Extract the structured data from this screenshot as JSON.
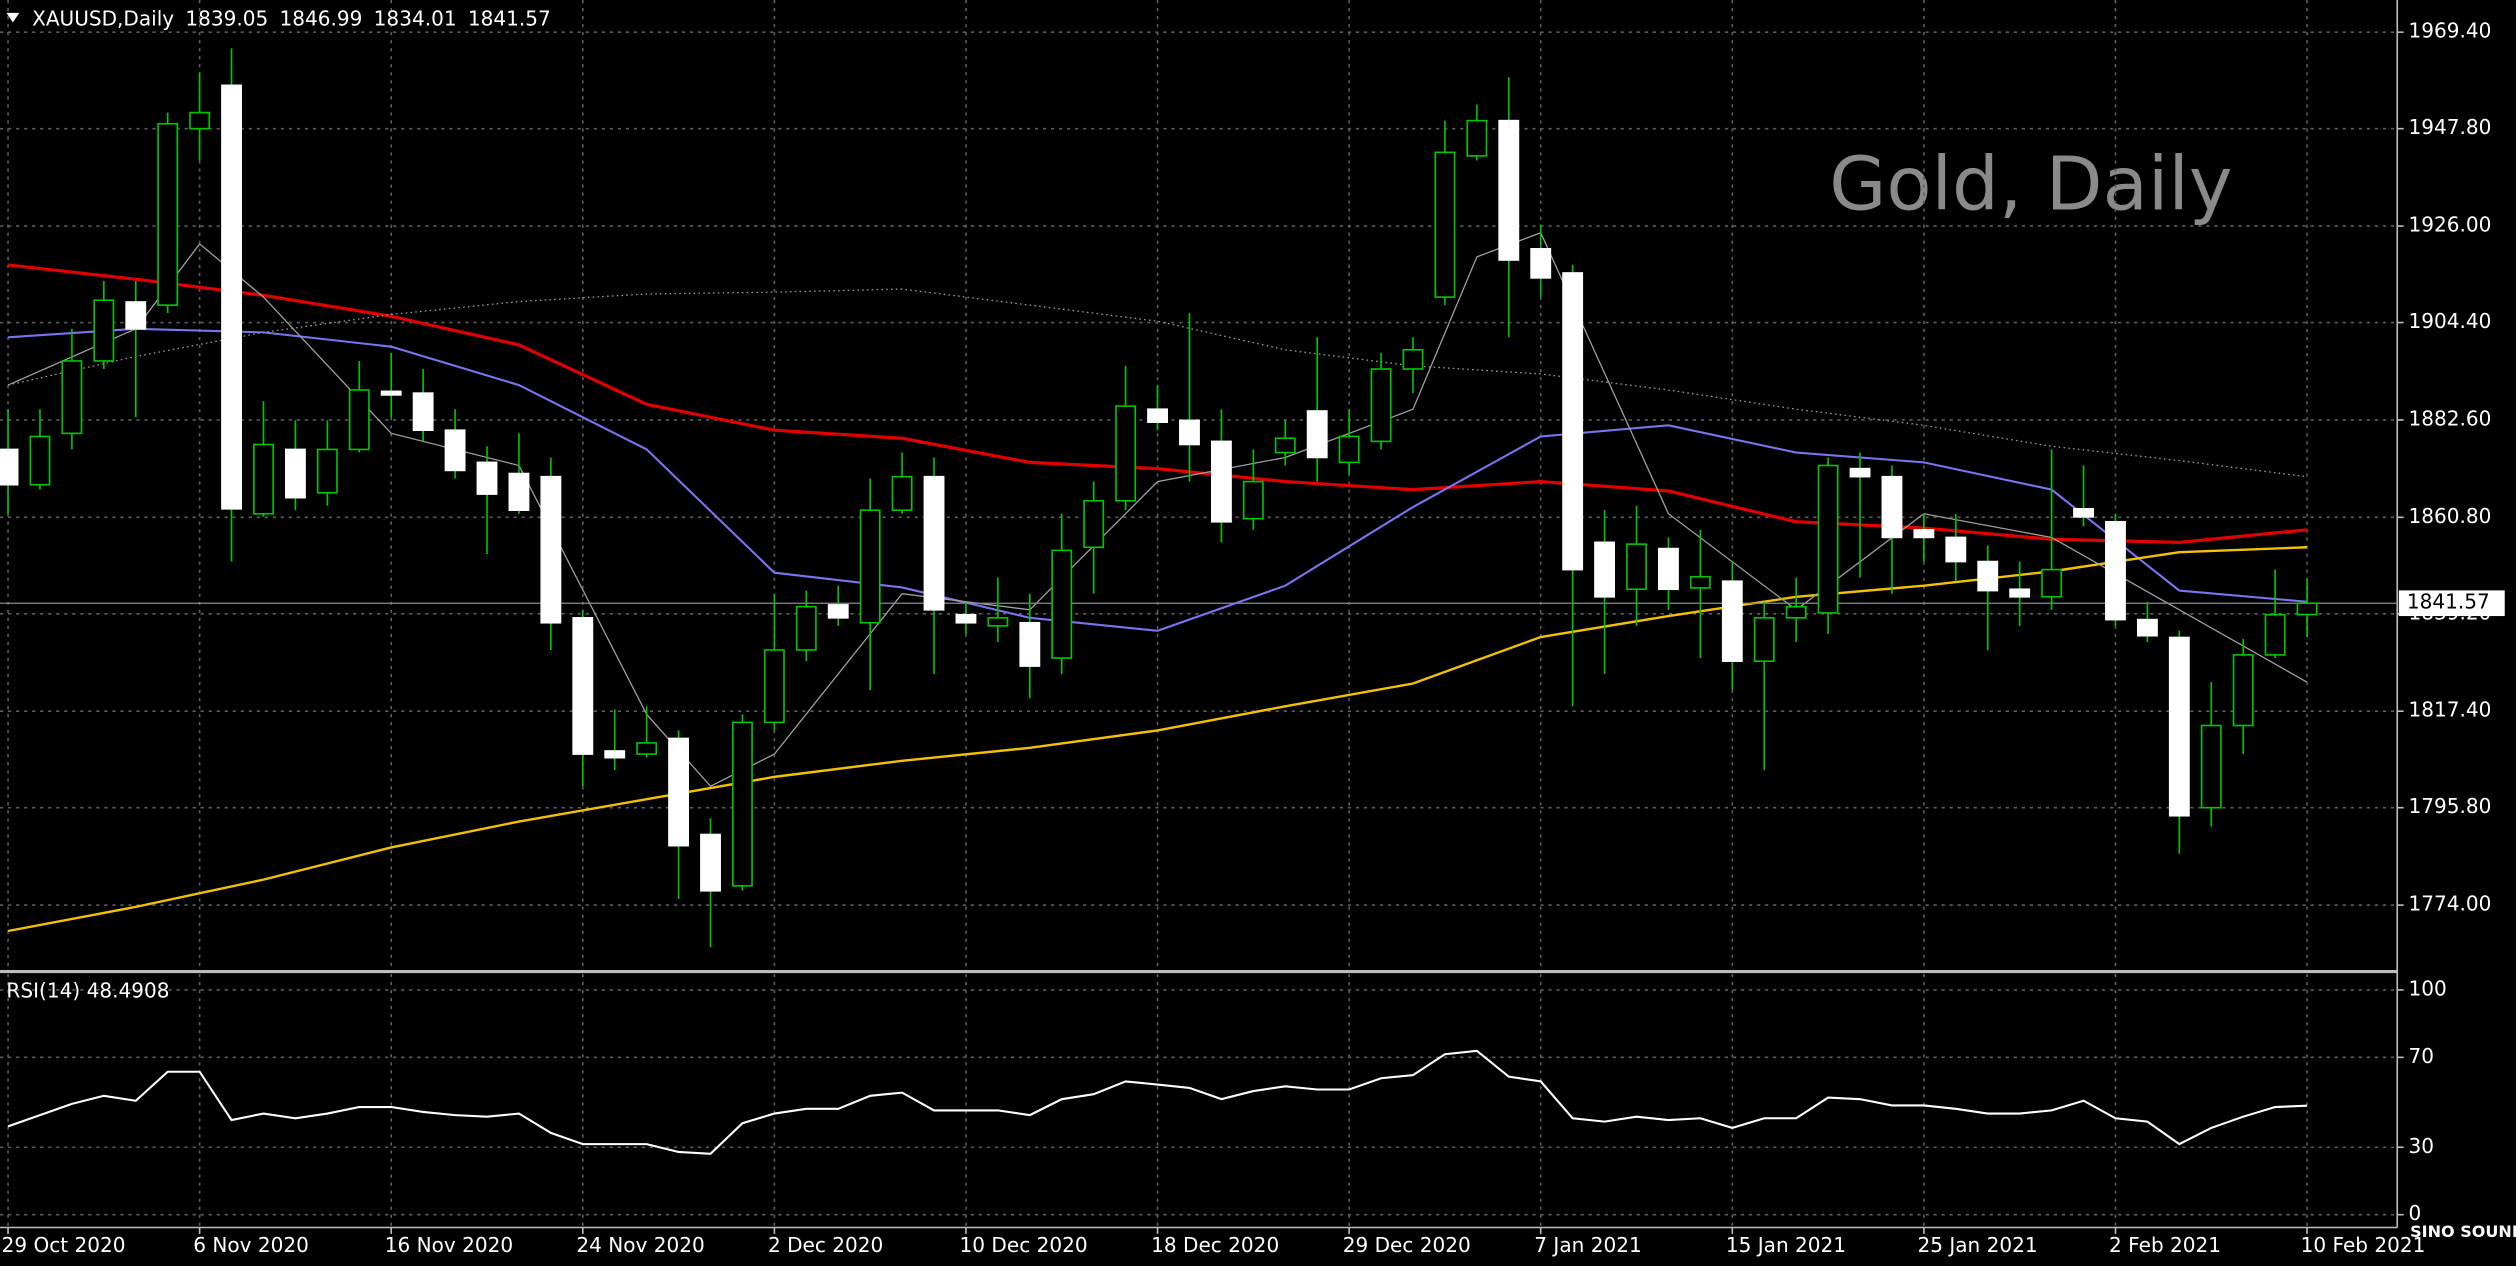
{
  "chart_data": [
    {
      "type": "candlestick",
      "symbol": "XAUUSD,Daily",
      "watermark": "Gold, Daily",
      "logo": "SINO SOUND",
      "categories": [
        "29 Oct 2020",
        null,
        null,
        null,
        null,
        null,
        "6 Nov 2020",
        null,
        null,
        null,
        null,
        null,
        "16 Nov 2020",
        null,
        null,
        null,
        null,
        null,
        "24 Nov 2020",
        null,
        null,
        null,
        null,
        null,
        "2 Dec 2020",
        null,
        null,
        null,
        null,
        null,
        "10 Dec 2020",
        null,
        null,
        null,
        null,
        null,
        "18 Dec 2020",
        null,
        null,
        null,
        null,
        null,
        "29 Dec 2020",
        null,
        null,
        null,
        null,
        null,
        "7 Jan 2021",
        null,
        null,
        null,
        null,
        null,
        "15 Jan 2021",
        null,
        null,
        null,
        null,
        null,
        "25 Jan 2021",
        null,
        null,
        null,
        null,
        null,
        "2 Feb 2021",
        null,
        null,
        null,
        null,
        null,
        "10 Feb 2021"
      ],
      "open": [
        1876.0,
        1868.1,
        1879.6,
        1895.8,
        1909.0,
        1908.3,
        1947.8,
        1957.5,
        1861.6,
        1876.0,
        1866.3,
        1876.0,
        1889.0,
        1888.6,
        1880.3,
        1873.1,
        1870.6,
        1869.9,
        1838.3,
        1808.5,
        1807.8,
        1811.3,
        1789.8,
        1778.3,
        1814.9,
        1831.1,
        1841.2,
        1837.2,
        1862.4,
        1869.9,
        1839.0,
        1836.5,
        1837.2,
        1829.3,
        1854.1,
        1864.5,
        1885.0,
        1882.5,
        1877.8,
        1860.5,
        1875.3,
        1884.6,
        1873.1,
        1877.8,
        1894.0,
        1910.1,
        1941.7,
        1949.6,
        1920.9,
        1915.5,
        1855.2,
        1844.7,
        1853.8,
        1845.0,
        1846.5,
        1828.6,
        1838.3,
        1839.4,
        1871.7,
        1869.9,
        1858.0,
        1856.3,
        1850.9,
        1844.7,
        1843.0,
        1862.7,
        1859.8,
        1837.9,
        1833.9,
        1795.8,
        1814.2,
        1830.0,
        1839.05
      ],
      "high": [
        1885.0,
        1885.0,
        1903.0,
        1913.7,
        1913.7,
        1951.4,
        1960.4,
        1965.8,
        1886.8,
        1882.5,
        1882.5,
        1895.8,
        1897.6,
        1894.0,
        1885.0,
        1876.7,
        1879.6,
        1874.2,
        1840.1,
        1817.8,
        1818.5,
        1813.1,
        1793.4,
        1816.7,
        1843.7,
        1844.4,
        1845.5,
        1869.5,
        1875.3,
        1874.2,
        1841.9,
        1847.3,
        1843.7,
        1861.6,
        1868.8,
        1894.7,
        1890.4,
        1906.5,
        1885.0,
        1876.0,
        1882.5,
        1901.1,
        1885.0,
        1897.6,
        1901.1,
        1949.6,
        1953.2,
        1959.3,
        1926.3,
        1917.3,
        1862.4,
        1863.4,
        1856.3,
        1858.0,
        1850.9,
        1841.9,
        1847.3,
        1874.2,
        1875.3,
        1872.4,
        1861.6,
        1861.6,
        1854.5,
        1850.9,
        1876.0,
        1872.4,
        1861.6,
        1841.9,
        1835.4,
        1823.9,
        1833.6,
        1849.1,
        1846.99
      ],
      "low": [
        1861.6,
        1867.0,
        1876.0,
        1894.0,
        1883.2,
        1906.5,
        1940.7,
        1850.9,
        1860.9,
        1862.4,
        1863.4,
        1875.3,
        1883.2,
        1877.8,
        1869.5,
        1852.6,
        1861.6,
        1831.1,
        1800.6,
        1804.2,
        1807.0,
        1775.4,
        1764.6,
        1777.2,
        1813.1,
        1828.6,
        1836.5,
        1822.1,
        1861.6,
        1825.7,
        1834.7,
        1832.9,
        1820.3,
        1825.7,
        1843.7,
        1862.4,
        1880.3,
        1868.8,
        1855.2,
        1858.0,
        1872.4,
        1868.8,
        1870.6,
        1876.0,
        1888.6,
        1908.3,
        1940.7,
        1901.1,
        1910.1,
        1818.5,
        1825.7,
        1836.5,
        1840.1,
        1829.3,
        1822.1,
        1804.2,
        1832.9,
        1834.7,
        1847.3,
        1843.7,
        1850.9,
        1846.6,
        1831.1,
        1836.5,
        1840.1,
        1858.8,
        1836.5,
        1832.9,
        1785.5,
        1791.6,
        1807.8,
        1829.3,
        1834.01
      ],
      "close": [
        1868.1,
        1878.9,
        1895.8,
        1909.4,
        1903.0,
        1948.9,
        1951.4,
        1862.7,
        1877.1,
        1865.2,
        1876.0,
        1889.3,
        1888.2,
        1880.3,
        1871.3,
        1866.0,
        1862.4,
        1837.2,
        1807.8,
        1807.0,
        1810.3,
        1787.3,
        1777.2,
        1814.9,
        1831.1,
        1840.8,
        1838.3,
        1862.4,
        1869.9,
        1840.1,
        1837.2,
        1838.3,
        1827.5,
        1853.4,
        1864.5,
        1885.7,
        1882.1,
        1877.1,
        1859.8,
        1868.8,
        1878.5,
        1874.2,
        1878.9,
        1894.0,
        1898.3,
        1942.5,
        1949.6,
        1918.4,
        1914.4,
        1849.1,
        1843.0,
        1854.8,
        1844.7,
        1847.5,
        1828.6,
        1838.3,
        1840.8,
        1872.4,
        1869.9,
        1856.3,
        1856.3,
        1850.9,
        1844.4,
        1843.0,
        1849.1,
        1860.9,
        1837.9,
        1834.3,
        1794.0,
        1814.2,
        1830.0,
        1839.0,
        1841.57
      ],
      "up_color": "#000000",
      "down_color": "#ffffff",
      "wick_color": "#00c800",
      "series": [
        {
          "color": "#e00000",
          "width": 2,
          "x": [
            0,
            4,
            8,
            12,
            16,
            20,
            24,
            28,
            32,
            36,
            40,
            44,
            48,
            52,
            56,
            60,
            64,
            68,
            72
          ],
          "values": [
            1917.3,
            1914.1,
            1910.5,
            1905.8,
            1899.4,
            1886.1,
            1880.3,
            1878.5,
            1873.1,
            1871.7,
            1868.8,
            1867.0,
            1868.8,
            1866.7,
            1859.8,
            1858.4,
            1855.9,
            1855.2,
            1858.0
          ]
        },
        {
          "color": "#7b74f0",
          "width": 1.3,
          "x": [
            0,
            4,
            8,
            12,
            16,
            20,
            24,
            28,
            32,
            36,
            40,
            44,
            48,
            52,
            56,
            60,
            64,
            68,
            72
          ],
          "values": [
            1901.1,
            1903.0,
            1902.2,
            1899.0,
            1890.4,
            1876.0,
            1848.4,
            1845.1,
            1838.3,
            1835.4,
            1845.5,
            1863.1,
            1878.9,
            1881.4,
            1875.3,
            1873.1,
            1867.0,
            1844.4,
            1841.9
          ]
        },
        {
          "color": "#f2c200",
          "width": 1.5,
          "x": [
            0,
            4,
            8,
            12,
            16,
            20,
            24,
            28,
            32,
            36,
            40,
            44,
            48,
            52,
            56,
            60,
            64,
            68,
            72
          ],
          "values": [
            1768.2,
            1773.6,
            1779.7,
            1786.9,
            1792.7,
            1797.7,
            1802.7,
            1806.3,
            1809.2,
            1813.1,
            1818.5,
            1823.6,
            1834.0,
            1838.7,
            1843.0,
            1845.5,
            1848.7,
            1853.0,
            1854.1
          ]
        },
        {
          "color": "#9a9a9a",
          "width": 0.8,
          "dotted": true,
          "x": [
            0,
            4,
            8,
            12,
            16,
            20,
            24,
            28,
            32,
            36,
            40,
            44,
            48,
            52,
            56,
            60,
            64,
            68,
            72
          ],
          "values": [
            1890.4,
            1896.8,
            1902.2,
            1906.2,
            1909.1,
            1910.8,
            1911.2,
            1911.9,
            1908.3,
            1904.7,
            1898.3,
            1894.7,
            1892.9,
            1889.3,
            1885.0,
            1881.4,
            1876.7,
            1873.5,
            1869.9
          ]
        },
        {
          "color": "#a0a0a0",
          "width": 0.8,
          "x": [
            0,
            4,
            6,
            8,
            12,
            16,
            20,
            22,
            24,
            28,
            32,
            36,
            40,
            44,
            46,
            48,
            52,
            56,
            60,
            64,
            68,
            72
          ],
          "values": [
            1890.4,
            1903.0,
            1922.0,
            1910.1,
            1879.6,
            1872.4,
            1816.7,
            1800.6,
            1807.8,
            1843.7,
            1840.1,
            1868.8,
            1874.2,
            1885.0,
            1919.1,
            1924.5,
            1861.6,
            1840.1,
            1861.6,
            1856.3,
            1840.1,
            1823.9
          ]
        }
      ],
      "ylim": [
        1759.3,
        1976.6
      ],
      "yticks": [
        {
          "value": 1969.4,
          "label": "1969.40"
        },
        {
          "value": 1947.8,
          "label": "1947.80"
        },
        {
          "value": 1926,
          "label": "1926.00"
        },
        {
          "value": 1904.4,
          "label": "1904.40"
        },
        {
          "value": 1882.6,
          "label": "1882.60"
        },
        {
          "value": 1860.8,
          "label": "1860.80"
        },
        {
          "value": 1839.2,
          "label": "1839.20"
        },
        {
          "value": 1817.4,
          "label": "1817.40"
        },
        {
          "value": 1795.8,
          "label": "1795.80"
        },
        {
          "value": 1774,
          "label": "1774.00"
        }
      ],
      "grid": true
    },
    {
      "type": "line",
      "title": "RSI(14)",
      "color": "#ffffff",
      "values": [
        39.3,
        44.3,
        49.3,
        52.9,
        50.7,
        63.6,
        63.6,
        42.1,
        45.0,
        42.9,
        45.0,
        47.9,
        47.9,
        45.7,
        44.3,
        43.6,
        45.0,
        36.4,
        31.4,
        31.4,
        31.4,
        27.9,
        27.1,
        40.7,
        45.0,
        47.1,
        47.1,
        52.9,
        54.3,
        46.4,
        46.4,
        46.4,
        44.3,
        51.4,
        53.6,
        59.3,
        57.9,
        56.4,
        51.4,
        55.0,
        57.1,
        55.7,
        55.7,
        60.7,
        62.1,
        71.4,
        72.9,
        61.4,
        59.3,
        42.9,
        41.4,
        43.6,
        42.1,
        42.9,
        38.6,
        42.9,
        42.9,
        52.1,
        51.4,
        48.6,
        48.6,
        47.1,
        45.0,
        45.0,
        46.4,
        50.7,
        42.9,
        41.4,
        31.4,
        38.6,
        43.6,
        47.9,
        48.4908
      ],
      "ylim": [
        -5.7,
        107.1
      ],
      "yticks": [
        100,
        70,
        30,
        0
      ],
      "grid": true
    }
  ]
}
